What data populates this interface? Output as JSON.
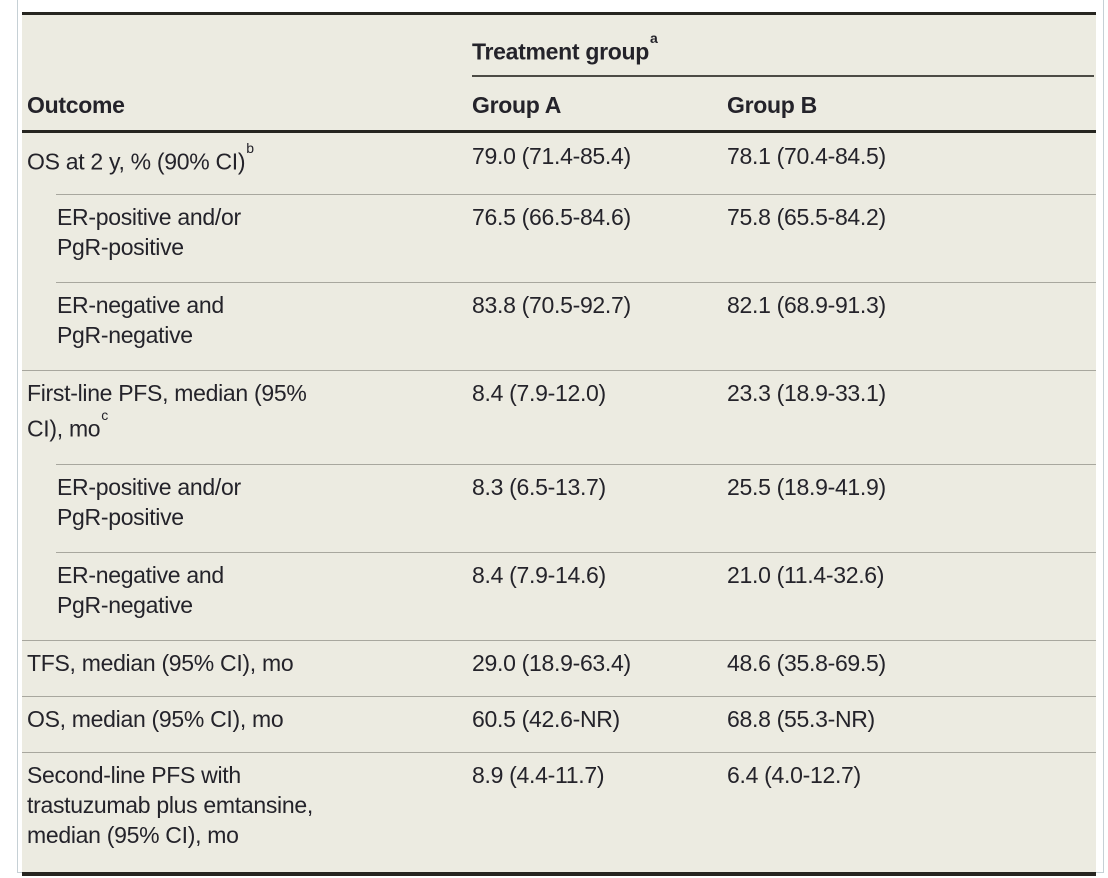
{
  "table": {
    "outcome_header": "Outcome",
    "spanner": {
      "label": "Treatment group",
      "sup": "a"
    },
    "group_a_header": "Group A",
    "group_b_header": "Group B",
    "rows": [
      {
        "outcome": "OS at 2 y, % (90% CI)",
        "sup": "b",
        "group_a": "79.0 (71.4-85.4)",
        "group_b": "78.1 (70.4-84.5)"
      },
      {
        "outcome": "ER-positive and/or\nPgR-positive",
        "sup": "",
        "group_a": "76.5 (66.5-84.6)",
        "group_b": "75.8 (65.5-84.2)"
      },
      {
        "outcome": "ER-negative and\nPgR-negative",
        "sup": "",
        "group_a": "83.8 (70.5-92.7)",
        "group_b": "82.1 (68.9-91.3)"
      },
      {
        "outcome": "First-line PFS, median (95%\nCI), mo",
        "sup": "c",
        "group_a": "8.4 (7.9-12.0)",
        "group_b": "23.3 (18.9-33.1)"
      },
      {
        "outcome": "ER-positive and/or\nPgR-positive",
        "sup": "",
        "group_a": "8.3 (6.5-13.7)",
        "group_b": "25.5 (18.9-41.9)"
      },
      {
        "outcome": "ER-negative and\nPgR-negative",
        "sup": "",
        "group_a": "8.4 (7.9-14.6)",
        "group_b": "21.0 (11.4-32.6)"
      },
      {
        "outcome": "TFS, median (95% CI), mo",
        "sup": "",
        "group_a": "29.0 (18.9-63.4)",
        "group_b": "48.6 (35.8-69.5)"
      },
      {
        "outcome": "OS, median (95% CI), mo",
        "sup": "",
        "group_a": "60.5 (42.6-NR)",
        "group_b": "68.8 (55.3-NR)"
      },
      {
        "outcome": "Second-line PFS with\ntrastuzumab plus emtansine,\nmedian (95% CI), mo",
        "sup": "",
        "group_a": "8.9 (4.4-11.7)",
        "group_b": "6.4 (4.0-12.7)"
      }
    ]
  },
  "colors": {
    "table_background": "#ecebe1",
    "heavy_rule": "#262520",
    "thin_rule": "#a8a79e",
    "text": "#24232a",
    "frame_border": "#c6d0d5"
  }
}
